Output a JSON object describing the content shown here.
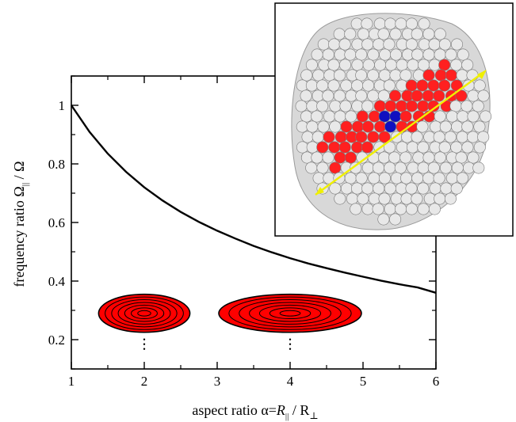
{
  "chart_data": {
    "type": "line",
    "xlabel": {
      "prefix": "aspect ratio α=",
      "italic_var": "R",
      "sub1": "||",
      "middle": " / R",
      "sub2": "⊥"
    },
    "ylabel": {
      "prefix": "frequency ratio  Ω",
      "sub": "||",
      "suffix": " / Ω"
    },
    "xlim": [
      1,
      6
    ],
    "ylim": [
      0.1,
      1.1
    ],
    "x_ticks": [
      "1",
      "2",
      "3",
      "4",
      "5",
      "6"
    ],
    "y_ticks": [
      "0.2",
      "0.4",
      "0.6",
      "0.8",
      "1"
    ],
    "series": [
      {
        "color": "#000000",
        "x": [
          1.0,
          1.25,
          1.5,
          1.75,
          2.0,
          2.25,
          2.5,
          2.75,
          3.0,
          3.25,
          3.5,
          3.75,
          4.0,
          4.25,
          4.5,
          4.75,
          5.0,
          5.25,
          5.5,
          5.75,
          6.0
        ],
        "y": [
          1.0,
          0.909,
          0.835,
          0.773,
          0.72,
          0.675,
          0.636,
          0.602,
          0.572,
          0.545,
          0.52,
          0.498,
          0.478,
          0.46,
          0.444,
          0.429,
          0.415,
          0.401,
          0.389,
          0.378,
          0.36
        ]
      }
    ],
    "markers": [
      {
        "shape": "ellipse",
        "at_aspect_ratio": 2,
        "at_level": 0.29,
        "rings": 7,
        "fill": "#ff0000"
      },
      {
        "shape": "ellipse",
        "at_aspect_ratio": 4,
        "at_level": 0.29,
        "rings": 7,
        "fill": "#ff0000"
      }
    ],
    "grid": false,
    "legend": "none"
  },
  "inset": {
    "description_icon": "cluster-render-icon",
    "colors": {
      "outer_spheres": "#e8e8e8",
      "middle_region": "#ff2020",
      "core_region": "#1010c0",
      "arrow": "#f0f000"
    }
  }
}
